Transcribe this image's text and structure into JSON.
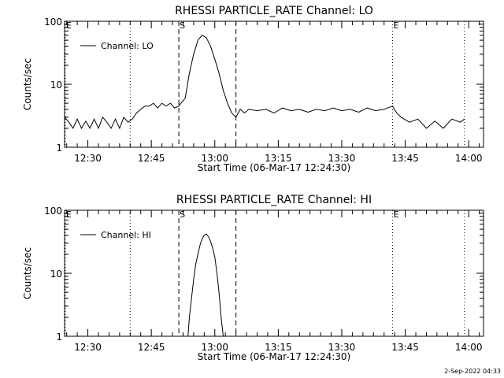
{
  "footer_date": "2-Sep-2022 04:33",
  "chart_data": [
    {
      "type": "line",
      "title": "RHESSI PARTICLE_RATE Channel: LO",
      "xlabel": "Start Time (06-Mar-17 12:24:30)",
      "ylabel": "Counts/sec",
      "yscale": "log",
      "ylim": [
        1,
        100
      ],
      "xlim": [
        "12:24:30",
        "14:03:30"
      ],
      "x_ticks": [
        "12:30",
        "12:45",
        "13:00",
        "13:15",
        "13:30",
        "13:45",
        "14:00"
      ],
      "y_ticks": [
        "1",
        "10",
        "100"
      ],
      "legend": "Channel: LO",
      "legend_position": "top-left",
      "markers": [
        {
          "label": "E",
          "time": "12:24:40",
          "style": "dotted"
        },
        {
          "label": "",
          "time": "12:40:00",
          "style": "dotted"
        },
        {
          "label": "S",
          "time": "12:51:30",
          "style": "dashed"
        },
        {
          "label": "",
          "time": "13:05:00",
          "style": "dashed"
        },
        {
          "label": "E",
          "time": "13:42:00",
          "style": "dotted"
        },
        {
          "label": "",
          "time": "13:59:00",
          "style": "dotted"
        }
      ],
      "series": [
        {
          "name": "Channel: LO",
          "x": [
            "12:24:30",
            "12:25:30",
            "12:26:30",
            "12:27:30",
            "12:28:30",
            "12:29:30",
            "12:30:30",
            "12:31:30",
            "12:32:30",
            "12:33:30",
            "12:34:30",
            "12:35:30",
            "12:36:30",
            "12:37:30",
            "12:38:30",
            "12:39:30",
            "12:40:30",
            "12:41:30",
            "12:42:30",
            "12:43:30",
            "12:44:30",
            "12:45:30",
            "12:46:30",
            "12:47:30",
            "12:48:30",
            "12:49:30",
            "12:50:30",
            "12:51:30",
            "12:52:00",
            "12:53:00",
            "12:54:00",
            "12:55:00",
            "12:56:00",
            "12:57:00",
            "12:58:00",
            "12:59:00",
            "13:00:00",
            "13:01:00",
            "13:02:00",
            "13:03:00",
            "13:04:00",
            "13:05:00",
            "13:06:00",
            "13:07:00",
            "13:08:00",
            "13:10:00",
            "13:12:00",
            "13:14:00",
            "13:16:00",
            "13:18:00",
            "13:20:00",
            "13:22:00",
            "13:24:00",
            "13:26:00",
            "13:28:00",
            "13:30:00",
            "13:32:00",
            "13:34:00",
            "13:36:00",
            "13:38:00",
            "13:40:00",
            "13:42:00",
            "13:43:00",
            "13:44:00",
            "13:46:00",
            "13:48:00",
            "13:50:00",
            "13:52:00",
            "13:54:00",
            "13:56:00",
            "13:58:00",
            "13:59:00"
          ],
          "y": [
            3,
            2.5,
            2,
            2.8,
            2,
            2.6,
            2,
            2.8,
            2,
            3,
            2.5,
            2,
            2.8,
            2,
            3,
            2.5,
            2.8,
            3.5,
            4,
            4.5,
            4.5,
            5,
            4.2,
            5,
            4.5,
            5,
            4.2,
            4.5,
            5,
            6,
            15,
            30,
            50,
            60,
            55,
            40,
            25,
            15,
            8,
            5,
            3.5,
            3,
            4,
            3.5,
            4,
            3.8,
            4,
            3.5,
            4.2,
            3.8,
            4,
            3.6,
            4,
            3.8,
            4.2,
            3.8,
            4,
            3.6,
            4.2,
            3.8,
            4,
            4.5,
            3.5,
            3,
            2.5,
            2.8,
            2,
            2.6,
            2,
            2.8,
            2.5,
            2.8
          ]
        }
      ]
    },
    {
      "type": "line",
      "title": "RHESSI PARTICLE_RATE Channel: HI",
      "xlabel": "Start Time (06-Mar-17 12:24:30)",
      "ylabel": "Counts/sec",
      "yscale": "log",
      "ylim": [
        1,
        100
      ],
      "xlim": [
        "12:24:30",
        "14:03:30"
      ],
      "x_ticks": [
        "12:30",
        "12:45",
        "13:00",
        "13:15",
        "13:30",
        "13:45",
        "14:00"
      ],
      "y_ticks": [
        "1",
        "10",
        "100"
      ],
      "legend": "Channel: HI",
      "legend_position": "top-left",
      "markers": [
        {
          "label": "E",
          "time": "12:24:40",
          "style": "dotted"
        },
        {
          "label": "",
          "time": "12:40:00",
          "style": "dotted"
        },
        {
          "label": "S",
          "time": "12:51:30",
          "style": "dashed"
        },
        {
          "label": "",
          "time": "13:05:00",
          "style": "dashed"
        },
        {
          "label": "E",
          "time": "13:42:00",
          "style": "dotted"
        },
        {
          "label": "",
          "time": "13:59:00",
          "style": "dotted"
        }
      ],
      "series": [
        {
          "name": "Channel: HI",
          "x": [
            "12:53:40",
            "12:54:00",
            "12:54:30",
            "12:55:00",
            "12:55:30",
            "12:56:00",
            "12:56:30",
            "12:57:00",
            "12:57:30",
            "12:58:00",
            "12:58:30",
            "12:59:00",
            "12:59:30",
            "13:00:00",
            "13:00:30",
            "13:01:00",
            "13:01:30",
            "13:02:00"
          ],
          "y": [
            1,
            2,
            4,
            8,
            14,
            20,
            28,
            35,
            40,
            42,
            38,
            32,
            25,
            18,
            10,
            5,
            2,
            1
          ]
        }
      ]
    }
  ]
}
